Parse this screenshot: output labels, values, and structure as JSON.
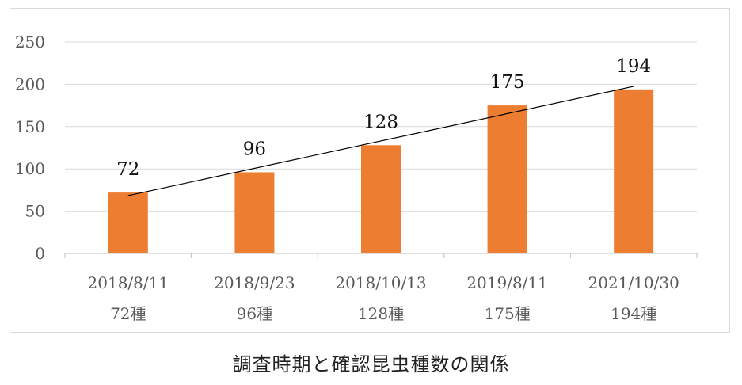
{
  "caption": "調査時期と確認昆虫種数の関係",
  "chart_data": {
    "type": "bar",
    "title": "",
    "xlabel": "",
    "ylabel": "",
    "categories": [
      "2018/8/11",
      "2018/9/23",
      "2018/10/13",
      "2019/8/11",
      "2021/10/30"
    ],
    "category_sublabels": [
      "72種",
      "96種",
      "128種",
      "175種",
      "194種"
    ],
    "series": [
      {
        "values": [
          72,
          96,
          128,
          175,
          194
        ],
        "color": "#ED7D31"
      }
    ],
    "data_labels": [
      "72",
      "96",
      "128",
      "175",
      "194"
    ],
    "trendline": {
      "type": "linear",
      "color": "#000000"
    },
    "ylim": [
      0,
      250
    ],
    "yticks": [
      "0",
      "50",
      "100",
      "150",
      "200",
      "250"
    ],
    "grid": true,
    "legend": "none"
  }
}
